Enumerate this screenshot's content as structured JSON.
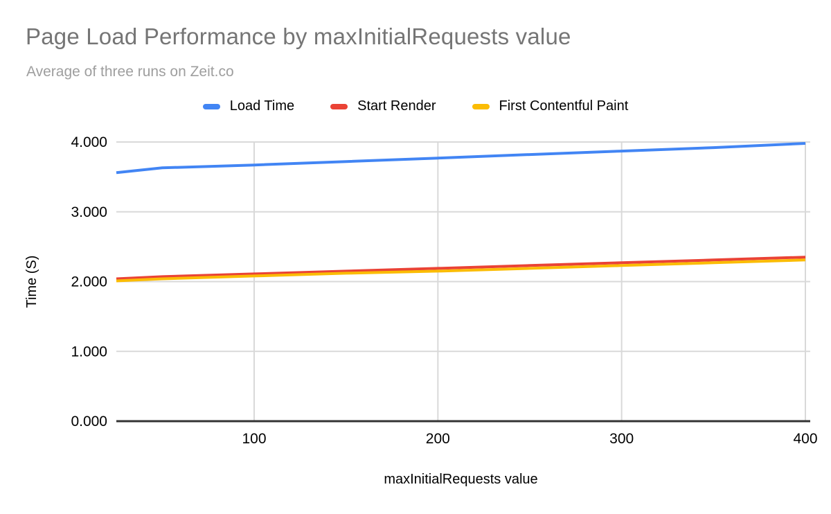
{
  "header": {
    "title": "Page Load Performance by maxInitialRequests value",
    "subtitle": "Average of three runs on Zeit.co"
  },
  "chart_data": {
    "type": "line",
    "title": "Page Load Performance by maxInitialRequests value",
    "subtitle": "Average of three runs on Zeit.co",
    "xlabel": "maxInitialRequests value",
    "ylabel": "Time (S)",
    "xlim": [
      25,
      400
    ],
    "ylim": [
      0,
      4
    ],
    "grid": true,
    "legend_position": "top",
    "x": [
      25,
      50,
      100,
      150,
      200,
      250,
      300,
      350,
      400
    ],
    "series": [
      {
        "name": "Load Time",
        "color": "#4285F4",
        "values": [
          3.56,
          3.63,
          3.67,
          3.72,
          3.77,
          3.82,
          3.87,
          3.92,
          3.98
        ]
      },
      {
        "name": "Start Render",
        "color": "#EA4335",
        "values": [
          2.04,
          2.07,
          2.11,
          2.15,
          2.19,
          2.23,
          2.27,
          2.31,
          2.35
        ]
      },
      {
        "name": "First Contentful Paint",
        "color": "#FBBC04",
        "values": [
          2.01,
          2.04,
          2.08,
          2.12,
          2.15,
          2.19,
          2.23,
          2.27,
          2.31
        ]
      }
    ],
    "x_ticks": [
      {
        "value": 100,
        "label": "100"
      },
      {
        "value": 200,
        "label": "200"
      },
      {
        "value": 300,
        "label": "300"
      },
      {
        "value": 400,
        "label": "400"
      }
    ],
    "y_ticks": [
      {
        "value": 0,
        "label": "0.000"
      },
      {
        "value": 1,
        "label": "1.000"
      },
      {
        "value": 2,
        "label": "2.000"
      },
      {
        "value": 3,
        "label": "3.000"
      },
      {
        "value": 4,
        "label": "4.000"
      }
    ],
    "style": {
      "grid_color": "#d9d9d9",
      "axis_color": "#333333",
      "tick_text_color": "#000000",
      "axis_title_color": "#000000",
      "line_width": 4
    }
  }
}
